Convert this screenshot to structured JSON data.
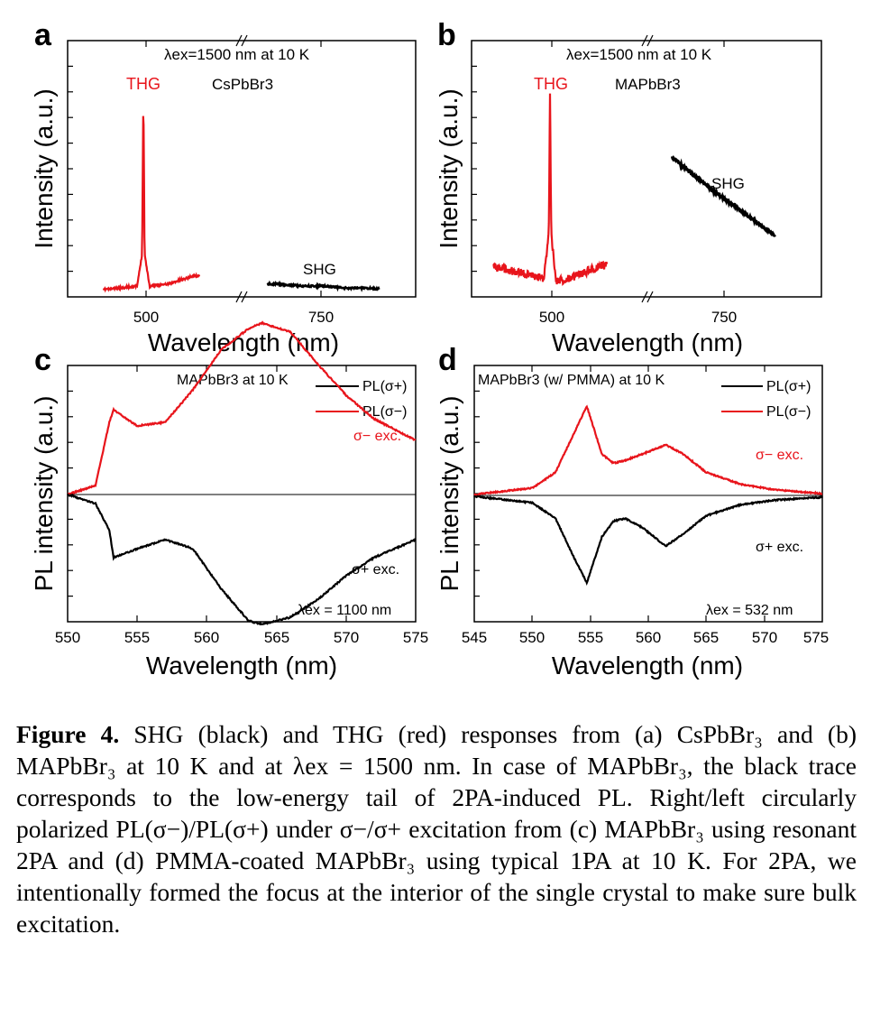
{
  "figure": {
    "panel_a": {
      "letter": "a",
      "excitation": "λex=1500 nm at 10 K",
      "material": "CsPbBr3",
      "thg_label": "THG",
      "shg_label": "SHG",
      "xlabel": "Wavelength (nm)",
      "ylabel": "Intensity (a.u.)",
      "xticks": [
        "500",
        "750"
      ]
    },
    "panel_b": {
      "letter": "b",
      "excitation": "λex=1500 nm at 10 K",
      "material": "MAPbBr3",
      "thg_label": "THG",
      "shg_label": "SHG",
      "xlabel": "Wavelength (nm)",
      "ylabel": "Intensity (a.u.)",
      "xticks": [
        "500",
        "750"
      ]
    },
    "panel_c": {
      "letter": "c",
      "condition": "MAPbBr3 at 10 K",
      "legend": [
        "PL(σ+)",
        "PL(σ−)"
      ],
      "upper_label": "σ− exc.",
      "lower_label": "σ+ exc.",
      "excitation": "λex = 1100 nm",
      "xlabel": "Wavelength (nm)",
      "ylabel": "PL intensity (a.u.)",
      "xticks": [
        "550",
        "555",
        "560",
        "565",
        "570",
        "575"
      ]
    },
    "panel_d": {
      "letter": "d",
      "condition": "MAPbBr3 (w/ PMMA) at 10 K",
      "legend": [
        "PL(σ+)",
        "PL(σ−)"
      ],
      "upper_label": "σ− exc.",
      "lower_label": "σ+ exc.",
      "excitation": "λex = 532 nm",
      "xlabel": "Wavelength (nm)",
      "ylabel": "PL intensity (a.u.)",
      "xticks": [
        "545",
        "550",
        "555",
        "560",
        "565",
        "570",
        "575"
      ]
    }
  },
  "chart_data": [
    {
      "type": "line",
      "panel": "a",
      "xlabel": "Wavelength (nm)",
      "ylabel": "Intensity (a.u.)",
      "axis_break": true,
      "series": [
        {
          "name": "THG",
          "color": "#e8141b",
          "x": [
            460,
            480,
            495,
            499,
            500,
            501,
            505,
            520,
            540
          ],
          "y": [
            0.02,
            0.03,
            0.04,
            0.2,
            1.0,
            0.2,
            0.04,
            0.05,
            0.09
          ]
        },
        {
          "name": "SHG",
          "color": "#000000",
          "x": [
            700,
            720,
            740,
            760,
            780,
            800
          ],
          "y": [
            0.05,
            0.04,
            0.04,
            0.03,
            0.03,
            0.02
          ]
        }
      ]
    },
    {
      "type": "line",
      "panel": "b",
      "xlabel": "Wavelength (nm)",
      "ylabel": "Intensity (a.u.)",
      "axis_break": true,
      "series": [
        {
          "name": "THG",
          "color": "#e8141b",
          "x": [
            460,
            480,
            495,
            499,
            500,
            501,
            505,
            520,
            540
          ],
          "y": [
            0.13,
            0.1,
            0.08,
            0.3,
            1.0,
            0.3,
            0.06,
            0.09,
            0.14
          ]
        },
        {
          "name": "SHG",
          "color": "#000000",
          "x": [
            700,
            720,
            740,
            760,
            780,
            800,
            820
          ],
          "y": [
            0.69,
            0.6,
            0.51,
            0.43,
            0.35,
            0.27,
            0.18
          ]
        }
      ]
    },
    {
      "type": "line",
      "panel": "c",
      "xlabel": "Wavelength (nm)",
      "ylabel": "PL intensity (a.u.)",
      "xlim": [
        550,
        575
      ],
      "series": [
        {
          "name": "PL(σ+)",
          "color": "#000000",
          "excitation": "σ+ exc.",
          "x": [
            550,
            552,
            553,
            553.3,
            555,
            557,
            559,
            561,
            563,
            564,
            566,
            568,
            570,
            572,
            575
          ],
          "y": [
            0,
            -0.05,
            -0.2,
            -0.35,
            -0.3,
            -0.25,
            -0.3,
            -0.52,
            -0.7,
            -0.72,
            -0.68,
            -0.58,
            -0.45,
            -0.35,
            -0.25
          ]
        },
        {
          "name": "PL(σ−)",
          "color": "#e8141b",
          "excitation": "σ− exc.",
          "x": [
            550,
            552,
            553,
            553.3,
            555,
            557,
            559,
            561,
            563,
            564,
            566,
            568,
            570,
            572,
            575
          ],
          "y": [
            0,
            0.05,
            0.4,
            0.47,
            0.38,
            0.4,
            0.58,
            0.8,
            0.92,
            0.95,
            0.9,
            0.72,
            0.55,
            0.42,
            0.3
          ]
        }
      ]
    },
    {
      "type": "line",
      "panel": "d",
      "xlabel": "Wavelength (nm)",
      "ylabel": "PL intensity (a.u.)",
      "xlim": [
        545,
        575
      ],
      "series": [
        {
          "name": "PL(σ+)",
          "color": "#000000",
          "excitation": "σ+ exc.",
          "x": [
            545,
            550,
            552,
            553.5,
            554.7,
            556,
            557,
            558,
            559.5,
            561.5,
            563,
            565,
            568,
            571,
            575
          ],
          "y": [
            -0.01,
            -0.08,
            -0.25,
            -0.65,
            -0.95,
            -0.45,
            -0.28,
            -0.25,
            -0.35,
            -0.55,
            -0.42,
            -0.22,
            -0.1,
            -0.05,
            -0.02
          ]
        },
        {
          "name": "PL(σ−)",
          "color": "#e8141b",
          "excitation": "σ− exc.",
          "x": [
            545,
            550,
            552,
            553.5,
            554.7,
            556,
            557,
            558,
            559.5,
            561.5,
            563,
            565,
            568,
            571,
            575
          ],
          "y": [
            0.01,
            0.08,
            0.25,
            0.65,
            0.97,
            0.45,
            0.35,
            0.38,
            0.45,
            0.55,
            0.45,
            0.25,
            0.12,
            0.06,
            0.02
          ]
        }
      ]
    }
  ],
  "caption": {
    "label": "Figure 4.",
    "text": " SHG (black) and THG (red) responses from (a) CsPbBr₃ and (b) MAPbBr₃ at 10 K and at λex = 1500 nm. In case of MAPbBr₃, the black trace corresponds to the low-energy tail of 2PA-induced PL. Right/left circularly polarized PL(σ−)/PL(σ+) under σ−/σ+ excitation from (c) MAPbBr₃ using resonant 2PA and (d) PMMA-coated MAPbBr₃ using typical 1PA at 10 K. For 2PA, we intentionally formed the focus at the interior of the single crystal to make sure bulk excitation."
  }
}
